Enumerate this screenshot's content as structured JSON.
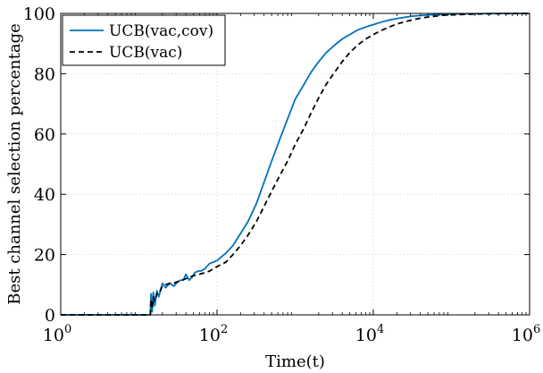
{
  "chart_data": {
    "type": "line",
    "title": "",
    "xlabel": "Time(t)",
    "ylabel": "Best channel selection percentage",
    "xscale": "log",
    "xlim": [
      1,
      1000000
    ],
    "ylim": [
      0,
      100
    ],
    "x_ticks": [
      {
        "value": 1,
        "base": "10",
        "exp": "0"
      },
      {
        "value": 100,
        "base": "10",
        "exp": "2"
      },
      {
        "value": 10000,
        "base": "10",
        "exp": "4"
      },
      {
        "value": 1000000,
        "base": "10",
        "exp": "6"
      }
    ],
    "y_ticks": [
      "0",
      "20",
      "40",
      "60",
      "80",
      "100"
    ],
    "grid": true,
    "legend_position": "top-left",
    "series": [
      {
        "name": "UCB(vac,cov)",
        "color": "#0072BD",
        "style": "solid",
        "x": [
          1,
          14,
          14.3,
          14.8,
          15.3,
          16,
          17,
          18,
          20,
          22,
          25,
          28,
          31,
          34,
          37,
          40,
          44,
          48,
          52,
          57,
          63,
          70,
          80,
          90,
          100,
          130,
          160,
          200,
          250,
          320,
          400,
          500,
          630,
          800,
          1000,
          1300,
          1600,
          2000,
          2500,
          3200,
          4000,
          5000,
          6300,
          8000,
          10000,
          13000,
          16000,
          20000,
          25000,
          32000,
          40000,
          50000,
          63000,
          80000,
          100000,
          200000,
          400000,
          1000000
        ],
        "y": [
          0,
          0,
          7,
          1,
          7.5,
          3,
          8,
          6,
          10.5,
          9,
          10.5,
          9.5,
          10.8,
          11.5,
          11.5,
          13.5,
          11.5,
          12.5,
          14,
          14.5,
          14.6,
          15.3,
          17,
          17.5,
          18,
          20.5,
          23,
          27,
          31,
          37,
          44,
          51,
          58,
          65,
          71.5,
          76.5,
          80.5,
          84,
          87,
          89.5,
          91.5,
          93,
          94.5,
          95.5,
          96.3,
          97.2,
          97.8,
          98.3,
          98.7,
          99.1,
          99.3,
          99.5,
          99.6,
          99.7,
          99.8,
          99.9,
          100,
          100
        ]
      },
      {
        "name": "UCB(vac)",
        "color": "#000000",
        "style": "dashed",
        "x": [
          1,
          14,
          14.3,
          14.8,
          15.3,
          16,
          17,
          18,
          20,
          22,
          25,
          28,
          31,
          35,
          40,
          50,
          60,
          70,
          80,
          100,
          130,
          160,
          200,
          250,
          320,
          400,
          500,
          630,
          800,
          1000,
          1300,
          1600,
          2000,
          2500,
          3200,
          4000,
          5000,
          6300,
          8000,
          10000,
          13000,
          16000,
          20000,
          25000,
          32000,
          40000,
          50000,
          63000,
          80000,
          100000,
          200000,
          400000,
          1000000
        ],
        "y": [
          0,
          0,
          5,
          2,
          6,
          4.5,
          7,
          7,
          9.5,
          10,
          10.5,
          10.5,
          11,
          11.5,
          12,
          13,
          13.5,
          14,
          14.5,
          16,
          17.5,
          20,
          23,
          26.5,
          31,
          36,
          41,
          46,
          51,
          56.5,
          62,
          67,
          72,
          76.5,
          80.5,
          84,
          87,
          89.5,
          91.5,
          93,
          94.5,
          95.5,
          96.5,
          97.2,
          97.9,
          98.4,
          98.8,
          99.1,
          99.4,
          99.5,
          99.8,
          99.9,
          100
        ]
      }
    ]
  }
}
